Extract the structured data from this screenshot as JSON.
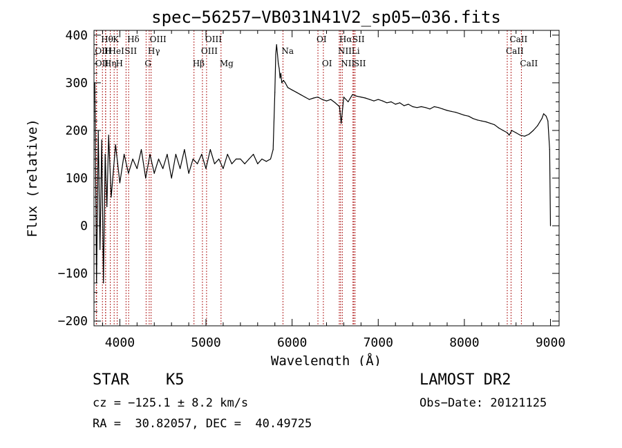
{
  "chart_data": {
    "type": "line",
    "title": "spec−56257−VB031N41V2_sp05−036.fits",
    "xlabel": "Wavelength (Å)",
    "ylabel": "Flux (relative)",
    "xlim": [
      3700,
      9100
    ],
    "ylim": [
      -210,
      410
    ],
    "xticks": [
      4000,
      5000,
      6000,
      7000,
      8000,
      9000
    ],
    "yticks": [
      -200,
      -100,
      0,
      100,
      200,
      300,
      400
    ],
    "ytick_labels": [
      "−200",
      "−100",
      "0",
      "100",
      "200",
      "300",
      "400"
    ],
    "grid": false,
    "series": [
      {
        "x": [
          3710,
          3730,
          3750,
          3770,
          3790,
          3810,
          3830,
          3850,
          3870,
          3900,
          3950,
          4000,
          4050,
          4100,
          4150,
          4200,
          4250,
          4300,
          4350,
          4400,
          4450,
          4500,
          4550,
          4600,
          4650,
          4700,
          4750,
          4800,
          4850,
          4900,
          4950,
          5000,
          5050,
          5100,
          5150,
          5200,
          5250,
          5300,
          5350,
          5400,
          5450,
          5500,
          5550,
          5600,
          5650,
          5700,
          5750,
          5780,
          5800,
          5810,
          5820,
          5830,
          5840,
          5850,
          5860,
          5870,
          5880,
          5900,
          5920,
          5950,
          6000,
          6050,
          6100,
          6150,
          6200,
          6250,
          6300,
          6350,
          6400,
          6450,
          6500,
          6550,
          6570,
          6600,
          6650,
          6700,
          6750,
          6800,
          6850,
          6900,
          6950,
          7000,
          7050,
          7100,
          7150,
          7200,
          7250,
          7300,
          7350,
          7400,
          7450,
          7500,
          7550,
          7600,
          7650,
          7700,
          7750,
          7800,
          7850,
          7900,
          7950,
          8000,
          8050,
          8100,
          8150,
          8200,
          8250,
          8300,
          8350,
          8400,
          8450,
          8500,
          8520,
          8550,
          8600,
          8650,
          8700,
          8750,
          8800,
          8850,
          8900,
          8920,
          8950,
          8970,
          8990,
          9000
        ],
        "y": [
          300,
          -120,
          200,
          -50,
          180,
          -120,
          150,
          40,
          190,
          60,
          170,
          90,
          150,
          110,
          140,
          120,
          160,
          100,
          150,
          110,
          140,
          120,
          150,
          100,
          150,
          120,
          160,
          110,
          140,
          130,
          150,
          120,
          160,
          130,
          140,
          120,
          150,
          130,
          140,
          140,
          130,
          140,
          150,
          130,
          140,
          135,
          140,
          160,
          280,
          360,
          380,
          360,
          340,
          330,
          310,
          320,
          300,
          305,
          300,
          290,
          285,
          280,
          275,
          270,
          265,
          268,
          270,
          265,
          262,
          265,
          258,
          250,
          215,
          270,
          260,
          275,
          272,
          270,
          268,
          265,
          262,
          265,
          262,
          258,
          260,
          255,
          258,
          252,
          255,
          250,
          248,
          250,
          248,
          245,
          250,
          248,
          245,
          242,
          240,
          238,
          235,
          232,
          230,
          225,
          222,
          220,
          218,
          215,
          212,
          205,
          200,
          195,
          190,
          200,
          195,
          190,
          188,
          192,
          200,
          210,
          225,
          235,
          230,
          220,
          160,
          0
        ]
      }
    ],
    "line_markers": [
      {
        "label": "OII",
        "x": 3727,
        "row": 2
      },
      {
        "label": "OII",
        "x": 3730,
        "row": 3
      },
      {
        "label": "Hθ",
        "x": 3798,
        "row": 1
      },
      {
        "label": "H",
        "x": 3835,
        "row": 2
      },
      {
        "label": "Hη",
        "x": 3835,
        "row": 3
      },
      {
        "label": "HeI",
        "x": 3889,
        "row": 2
      },
      {
        "label": "K",
        "x": 3934,
        "row": 1
      },
      {
        "label": "H",
        "x": 3969,
        "row": 3
      },
      {
        "label": "SII",
        "x": 4072,
        "row": 2
      },
      {
        "label": "Hδ",
        "x": 4102,
        "row": 1
      },
      {
        "label": "G",
        "x": 4305,
        "row": 3
      },
      {
        "label": "Hγ",
        "x": 4341,
        "row": 2
      },
      {
        "label": "OIII",
        "x": 4363,
        "row": 1
      },
      {
        "label": "Hβ",
        "x": 4861,
        "row": 3
      },
      {
        "label": "OIII",
        "x": 4959,
        "row": 2
      },
      {
        "label": "OIII",
        "x": 5007,
        "row": 1
      },
      {
        "label": "Mg",
        "x": 5175,
        "row": 3
      },
      {
        "label": "Na",
        "x": 5894,
        "row": 2
      },
      {
        "label": "OI",
        "x": 6300,
        "row": 1
      },
      {
        "label": "OI",
        "x": 6363,
        "row": 3
      },
      {
        "label": "NII",
        "x": 6548,
        "row": 2
      },
      {
        "label": "Hα",
        "x": 6563,
        "row": 1
      },
      {
        "label": "NII",
        "x": 6583,
        "row": 3
      },
      {
        "label": "Li",
        "x": 6707,
        "row": 2
      },
      {
        "label": "SII",
        "x": 6716,
        "row": 1
      },
      {
        "label": "SII",
        "x": 6731,
        "row": 3
      },
      {
        "label": "CaII",
        "x": 8498,
        "row": 2
      },
      {
        "label": "CaII",
        "x": 8542,
        "row": 1
      },
      {
        "label": "CaII",
        "x": 8662,
        "row": 3
      }
    ]
  },
  "footer": {
    "object_type": "STAR",
    "subclass": "K5",
    "survey": "LAMOST DR2",
    "redshift_text": "cz = −125.1 ± 8.2 km/s",
    "obs_date": "Obs−Date: 20121125",
    "coords_text": "RA =  30.82057, DEC =  40.49725"
  },
  "colors": {
    "spectrum": "#000000",
    "marker_line": "#b22222",
    "axes": "#000000"
  }
}
